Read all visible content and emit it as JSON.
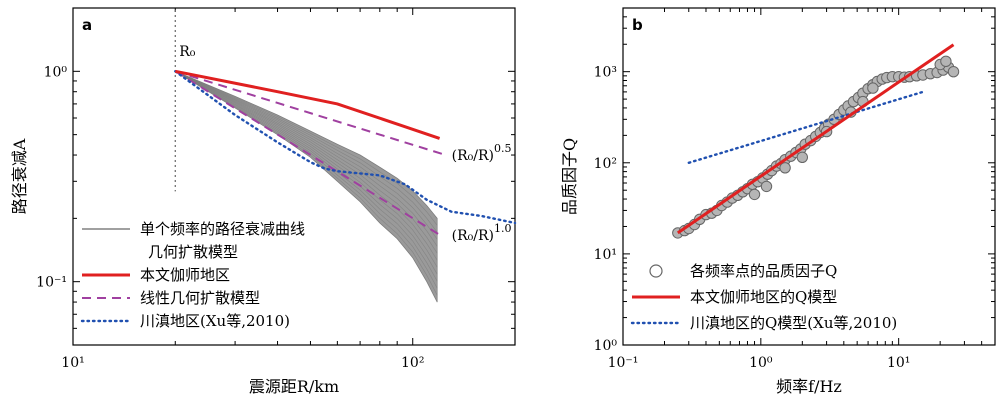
{
  "chart_data": [
    {
      "panel": "a",
      "type": "line",
      "xlabel": "震源距R/km",
      "ylabel": "路径衰减A",
      "xscale": "log",
      "yscale": "log",
      "xlim": [
        10,
        200
      ],
      "ylim": [
        0.05,
        2
      ],
      "xticks": [
        {
          "v": 10,
          "label": "10¹"
        },
        {
          "v": 100,
          "label": "10²"
        }
      ],
      "yticks": [
        {
          "v": 0.1,
          "label": "10⁻¹"
        },
        {
          "v": 1,
          "label": "10⁰"
        }
      ],
      "r0": {
        "x": 20,
        "label": "R₀"
      },
      "series": [
        {
          "name": "单个频率的路径衰减曲线",
          "style": "band",
          "color": "#8a8a8a",
          "x": [
            20,
            30,
            40,
            50,
            60,
            70,
            80,
            90,
            100,
            110,
            118
          ],
          "upper": [
            1.0,
            0.76,
            0.62,
            0.52,
            0.45,
            0.4,
            0.35,
            0.31,
            0.27,
            0.23,
            0.2
          ],
          "lower": [
            1.0,
            0.67,
            0.5,
            0.39,
            0.3,
            0.24,
            0.19,
            0.16,
            0.13,
            0.1,
            0.08
          ]
        },
        {
          "name": "几何扩散模型",
          "style": "legend-only",
          "color": "#ffffff"
        },
        {
          "name": "本文伽师地区",
          "style": "solid",
          "color": "#e02020",
          "x": [
            20,
            40,
            60,
            120
          ],
          "y": [
            1.0,
            0.8,
            0.7,
            0.48
          ]
        },
        {
          "name": "线性几何扩散模型",
          "style": "dash",
          "color": "#a040a0",
          "curves": [
            {
              "x": [
                20,
                125
              ],
              "y": [
                1.0,
                0.4
              ]
            },
            {
              "x": [
                20,
                120
              ],
              "y": [
                1.0,
                0.167
              ]
            }
          ]
        },
        {
          "name": "川滇地区(Xu等,2010)",
          "style": "dot",
          "color": "#2050b0",
          "x": [
            20,
            30,
            40,
            50,
            55,
            60,
            80,
            95,
            110,
            130,
            160,
            200
          ],
          "y": [
            1.0,
            0.62,
            0.46,
            0.37,
            0.345,
            0.335,
            0.32,
            0.29,
            0.245,
            0.215,
            0.205,
            0.19
          ]
        }
      ],
      "annotations": [
        {
          "text": "(R₀/R)",
          "sup": "0.5",
          "x": 125,
          "y": 0.4
        },
        {
          "text": "(R₀/R)",
          "sup": "1.0",
          "x": 125,
          "y": 0.167
        }
      ]
    },
    {
      "panel": "b",
      "type": "scatter",
      "xlabel": "频率f/Hz",
      "ylabel": "品质因子Q",
      "xscale": "log",
      "yscale": "log",
      "xlim": [
        0.1,
        50
      ],
      "ylim": [
        1,
        5000
      ],
      "xticks": [
        {
          "v": 0.1,
          "label": "10⁻¹"
        },
        {
          "v": 1,
          "label": "10⁰"
        },
        {
          "v": 10,
          "label": "10¹"
        }
      ],
      "yticks": [
        {
          "v": 1,
          "label": "10⁰"
        },
        {
          "v": 10,
          "label": "10¹"
        },
        {
          "v": 100,
          "label": "10²"
        },
        {
          "v": 1000,
          "label": "10³"
        }
      ],
      "series": [
        {
          "name": "各频率点的品质因子Q",
          "style": "circles",
          "color": "#808080",
          "points": [
            [
              0.25,
              17
            ],
            [
              0.28,
              18
            ],
            [
              0.3,
              19
            ],
            [
              0.33,
              21
            ],
            [
              0.36,
              24
            ],
            [
              0.4,
              27
            ],
            [
              0.44,
              28
            ],
            [
              0.48,
              30
            ],
            [
              0.52,
              34
            ],
            [
              0.57,
              37
            ],
            [
              0.62,
              41
            ],
            [
              0.68,
              44
            ],
            [
              0.74,
              48
            ],
            [
              0.8,
              52
            ],
            [
              0.87,
              58
            ],
            [
              0.95,
              62
            ],
            [
              1.03,
              68
            ],
            [
              1.12,
              75
            ],
            [
              1.2,
              82
            ],
            [
              1.3,
              92
            ],
            [
              1.4,
              98
            ],
            [
              1.5,
              108
            ],
            [
              1.65,
              118
            ],
            [
              1.8,
              130
            ],
            [
              1.95,
              142
            ],
            [
              2.1,
              160
            ],
            [
              2.3,
              175
            ],
            [
              2.5,
              195
            ],
            [
              2.7,
              215
            ],
            [
              2.9,
              240
            ],
            [
              3.1,
              265
            ],
            [
              3.4,
              300
            ],
            [
              3.7,
              340
            ],
            [
              4.0,
              380
            ],
            [
              4.3,
              420
            ],
            [
              4.7,
              470
            ],
            [
              5.1,
              520
            ],
            [
              5.5,
              580
            ],
            [
              6.0,
              650
            ],
            [
              6.5,
              720
            ],
            [
              7.0,
              780
            ],
            [
              7.6,
              830
            ],
            [
              8.2,
              860
            ],
            [
              9.0,
              880
            ],
            [
              10,
              880
            ],
            [
              11,
              870
            ],
            [
              12,
              880
            ],
            [
              13.5,
              900
            ],
            [
              15,
              920
            ],
            [
              17,
              950
            ],
            [
              19,
              980
            ],
            [
              21,
              1040
            ],
            [
              23,
              1120
            ],
            [
              25,
              1000
            ],
            [
              0.9,
              45
            ],
            [
              1.1,
              55
            ],
            [
              1.5,
              88
            ],
            [
              2.0,
              115
            ],
            [
              3.0,
              220
            ],
            [
              4.5,
              360
            ],
            [
              5.5,
              470
            ],
            [
              6.5,
              660
            ],
            [
              20,
              1200
            ],
            [
              22,
              1300
            ]
          ]
        },
        {
          "name": "本文伽师地区的Q模型",
          "style": "solid",
          "color": "#e02020",
          "x": [
            0.25,
            25
          ],
          "y": [
            17,
            1980
          ]
        },
        {
          "name": "川滇地区的Q模型(Xu等,2010)",
          "style": "dot",
          "color": "#2050b0",
          "x": [
            0.3,
            15
          ],
          "y": [
            100,
            600
          ]
        }
      ]
    }
  ]
}
